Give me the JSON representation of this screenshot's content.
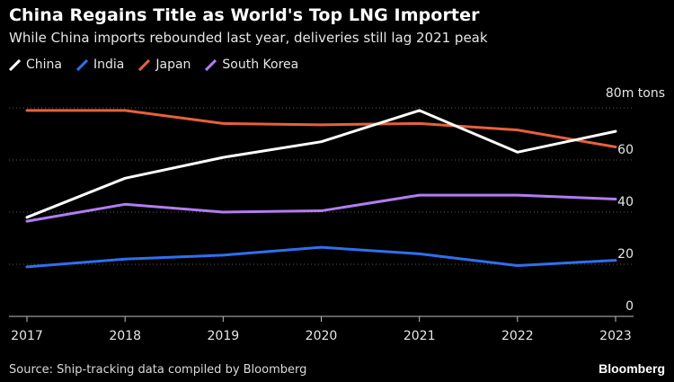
{
  "chart_data": {
    "type": "line",
    "title": "China Regains Title as World's Top LNG Importer",
    "subtitle": "While China imports rebounded last year, deliveries still lag 2021 peak",
    "ylabel_unit": "80m tons",
    "x": [
      "2017",
      "2018",
      "2019",
      "2020",
      "2021",
      "2022",
      "2023"
    ],
    "ylim": [
      0,
      80
    ],
    "y_ticks": [
      "0",
      "20",
      "40",
      "60"
    ],
    "grid": true,
    "legend_position": "top-left",
    "series": [
      {
        "name": "China",
        "color": "#ffffff",
        "values": [
          38,
          53,
          61,
          67,
          79,
          63,
          71
        ]
      },
      {
        "name": "India",
        "color": "#2f6ff0",
        "values": [
          19,
          22,
          23.5,
          26.5,
          24,
          19.5,
          21.5
        ]
      },
      {
        "name": "Japan",
        "color": "#e8603c",
        "values": [
          79,
          79,
          74,
          73.5,
          74,
          71.5,
          65
        ]
      },
      {
        "name": "South Korea",
        "color": "#b37cf2",
        "values": [
          36.5,
          43,
          40,
          40.5,
          46.5,
          46.5,
          45
        ]
      }
    ]
  },
  "footer": {
    "source": "Source: Ship-tracking data compiled by Bloomberg",
    "brand": "Bloomberg"
  }
}
